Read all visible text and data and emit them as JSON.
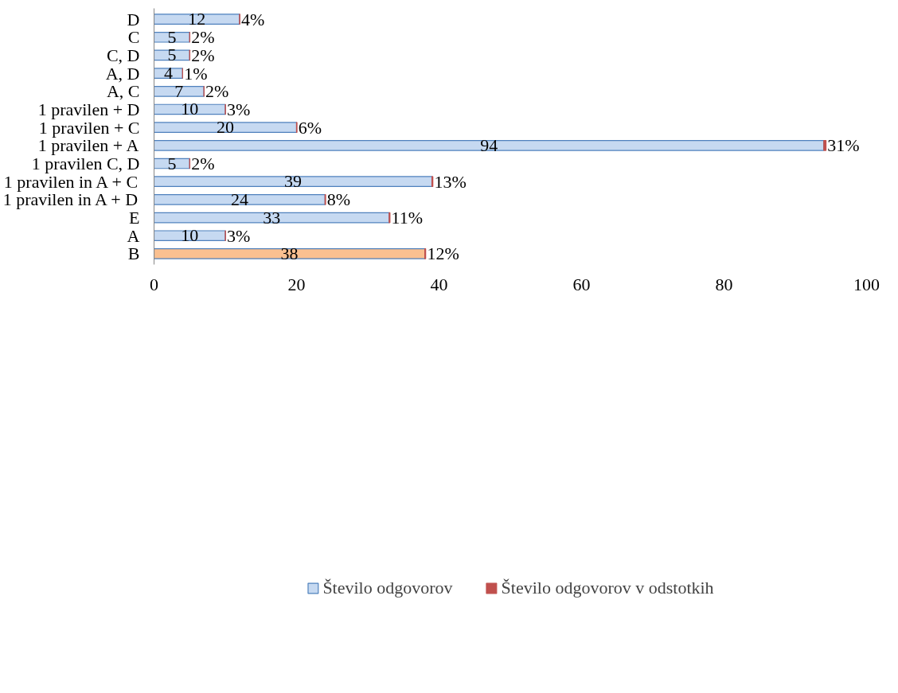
{
  "chart_data": {
    "type": "bar",
    "orientation": "horizontal",
    "stacked": true,
    "categories": [
      "D",
      "C",
      "C, D",
      "A, D",
      "A, C",
      "1 pravilen + D",
      "1 pravilen + C",
      "1 pravilen + A",
      "1 pravilen C, D",
      "1 pravilen in A + C",
      "1 pravilen in A + D",
      "E",
      "A",
      "B"
    ],
    "series": [
      {
        "name": "Število odgovorov",
        "color": "#c6d9f1",
        "colors": [
          "#c6d9f1",
          "#c6d9f1",
          "#c6d9f1",
          "#c6d9f1",
          "#c6d9f1",
          "#c6d9f1",
          "#c6d9f1",
          "#c6d9f1",
          "#c6d9f1",
          "#c6d9f1",
          "#c6d9f1",
          "#c6d9f1",
          "#c6d9f1",
          "#fac090"
        ],
        "values": [
          12,
          5,
          5,
          4,
          7,
          10,
          20,
          94,
          5,
          39,
          24,
          33,
          10,
          38
        ],
        "value_labels": [
          "12",
          "5",
          "5",
          "4",
          "7",
          "10",
          "20",
          "94",
          "5",
          "39",
          "24",
          "33",
          "10",
          "38"
        ]
      },
      {
        "name": "Število odgovorov v odstotkih",
        "color": "#c0504d",
        "values": [
          0.04,
          0.02,
          0.02,
          0.01,
          0.02,
          0.03,
          0.06,
          0.31,
          0.02,
          0.13,
          0.08,
          0.11,
          0.03,
          0.12
        ],
        "value_labels": [
          "4%",
          "2%",
          "2%",
          "1%",
          "2%",
          "3%",
          "6%",
          "31%",
          "2%",
          "13%",
          "8%",
          "11%",
          "3%",
          "12%"
        ]
      }
    ],
    "xlim": [
      0,
      100
    ],
    "xticks": [
      0,
      20,
      40,
      60,
      80,
      100
    ],
    "grid": false,
    "legend": "bottom"
  }
}
